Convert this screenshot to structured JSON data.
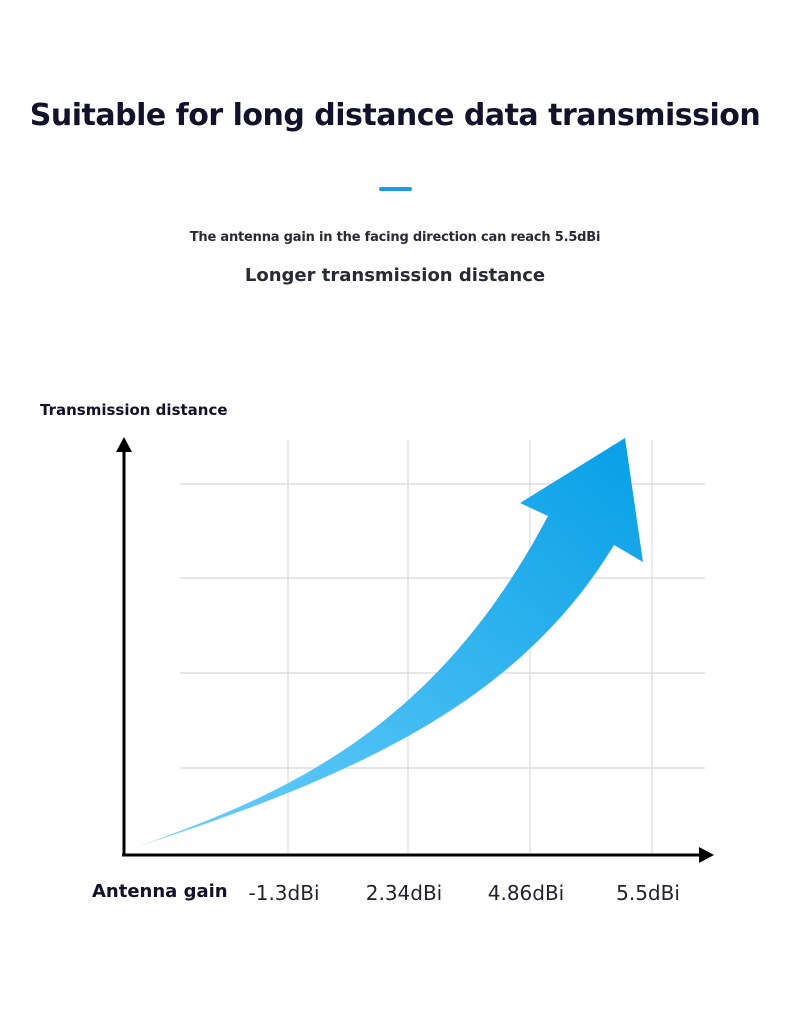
{
  "header": {
    "title": "Suitable for long distance data transmission",
    "subtitle": "The antenna gain in the facing direction can reach 5.5dBi",
    "tagline": "Longer transmission distance",
    "accent_color": "#1e9ae0"
  },
  "chart_data": {
    "type": "area",
    "title": "",
    "xlabel": "Antenna gain",
    "ylabel": "Transmission distance",
    "categories": [
      "-1.3dBi",
      "2.34dBi",
      "4.86dBi",
      "5.5dBi"
    ],
    "grid": true,
    "arrow_colors": [
      "#6fd0fb",
      "#069fe6"
    ]
  }
}
